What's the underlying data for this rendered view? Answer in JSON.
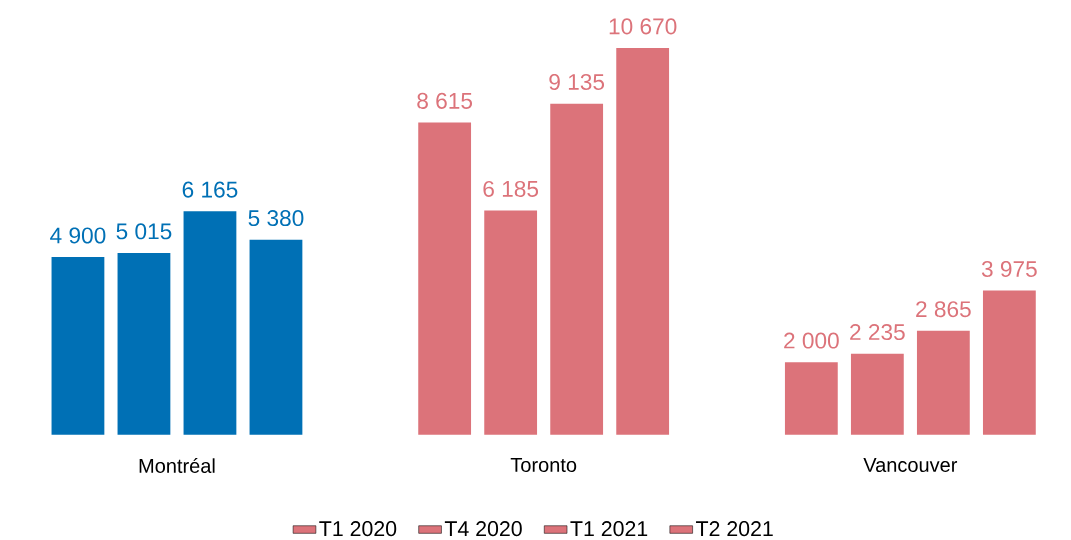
{
  "chart_data": {
    "type": "bar",
    "categories": [
      "Montréal",
      "Toronto",
      "Vancouver"
    ],
    "series": [
      {
        "name": "T1 2020",
        "color": "#dc737a",
        "colors": [
          "#0070b5",
          "#dc737a",
          "#dc737a"
        ],
        "values": [
          4900,
          8615,
          2000
        ],
        "value_labels": [
          "4 900",
          "8 615",
          "2 000"
        ]
      },
      {
        "name": "T4 2020",
        "color": "#dc737a",
        "colors": [
          "#0070b5",
          "#dc737a",
          "#dc737a"
        ],
        "values": [
          5015,
          6185,
          2235
        ],
        "value_labels": [
          "5 015",
          "6 185",
          "2 235"
        ]
      },
      {
        "name": "T1 2021",
        "color": "#dc737a",
        "colors": [
          "#0070b5",
          "#dc737a",
          "#dc737a"
        ],
        "values": [
          6165,
          9135,
          2865
        ],
        "value_labels": [
          "6 165",
          "9 135",
          "2 865"
        ]
      },
      {
        "name": "T2 2021",
        "color": "#dc737a",
        "colors": [
          "#0070b5",
          "#dc737a",
          "#dc737a"
        ],
        "values": [
          5380,
          10670,
          3975
        ],
        "value_labels": [
          "5 380",
          "10 670",
          "3 975"
        ]
      }
    ],
    "legend": "bottom"
  }
}
